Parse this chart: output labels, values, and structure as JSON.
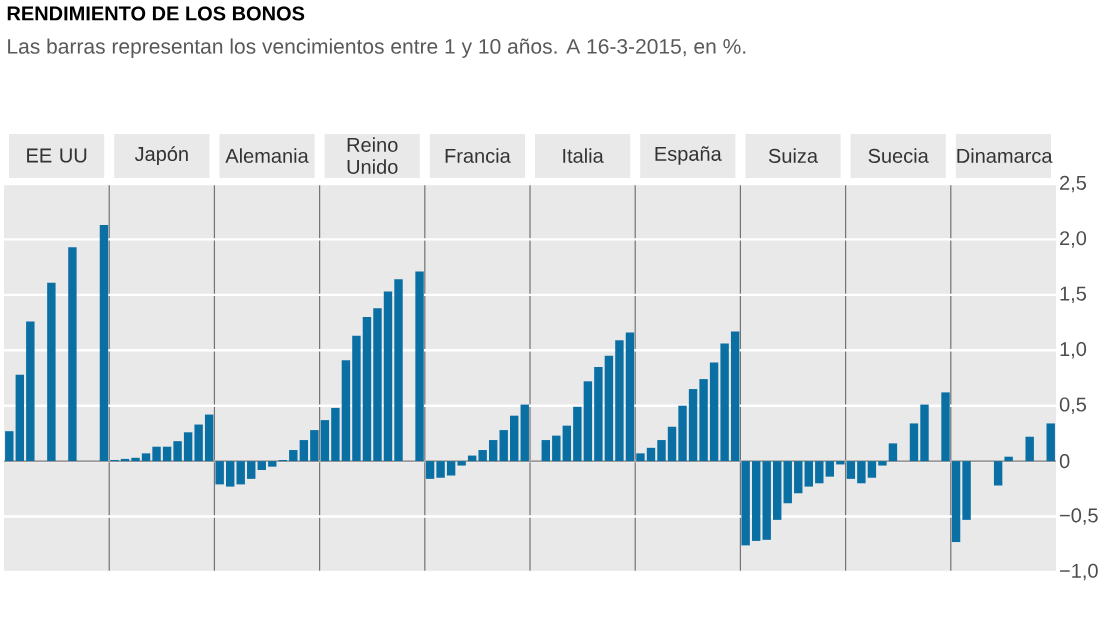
{
  "chart_data": {
    "type": "bar",
    "title": "RENDIMIENTO DE LOS BONOS",
    "subtitle": "Las barras representan los vencimientos entre 1 y 10 años. A 16-3-2015, en %.",
    "categories": [
      "EE UU",
      "Japón",
      "Alemania",
      "Reino Unido",
      "Francia",
      "Italia",
      "España",
      "Suiza",
      "Suecia",
      "Dinamarca"
    ],
    "series": [
      {
        "color": "#0a6fa3",
        "values": [
          0.27,
          0.01,
          -0.21,
          0.37,
          -0.16,
          null,
          0.07,
          -0.76,
          -0.16,
          -0.73
        ]
      },
      {
        "color": "#0a6fa3",
        "values": [
          0.78,
          0.02,
          -0.23,
          0.48,
          -0.15,
          0.19,
          0.12,
          -0.72,
          -0.2,
          -0.53
        ]
      },
      {
        "color": "#0a6fa3",
        "values": [
          1.26,
          0.03,
          -0.21,
          0.91,
          -0.13,
          0.23,
          0.19,
          -0.71,
          -0.15,
          null
        ]
      },
      {
        "color": "#0a6fa3",
        "values": [
          null,
          0.07,
          -0.16,
          1.13,
          -0.04,
          0.32,
          0.31,
          -0.53,
          -0.04,
          null
        ]
      },
      {
        "color": "#0a6fa3",
        "values": [
          1.61,
          0.13,
          -0.08,
          1.3,
          0.05,
          0.49,
          0.5,
          -0.38,
          0.16,
          -0.22
        ]
      },
      {
        "color": "#0a6fa3",
        "values": [
          null,
          0.13,
          -0.05,
          1.38,
          0.1,
          0.72,
          0.65,
          -0.29,
          null,
          0.04
        ]
      },
      {
        "color": "#0a6fa3",
        "values": [
          1.93,
          0.18,
          0.01,
          1.53,
          0.19,
          0.85,
          0.74,
          -0.23,
          0.34,
          null
        ]
      },
      {
        "color": "#0a6fa3",
        "values": [
          null,
          0.26,
          0.1,
          1.64,
          0.28,
          0.95,
          0.89,
          -0.2,
          0.51,
          0.22
        ]
      },
      {
        "color": "#0a6fa3",
        "values": [
          null,
          0.33,
          0.19,
          null,
          0.41,
          1.09,
          1.06,
          -0.14,
          null,
          null
        ]
      },
      {
        "color": "#0a6fa3",
        "values": [
          2.13,
          0.42,
          0.28,
          1.71,
          0.51,
          1.16,
          1.17,
          -0.03,
          0.62,
          0.34
        ]
      }
    ],
    "ylim": [
      -1,
      2.5
    ],
    "yticks": [
      {
        "value": -1,
        "label": "−1,0"
      },
      {
        "value": -0.5,
        "label": "−0,5"
      },
      0,
      {
        "value": 0.5,
        "label": "0,5"
      },
      {
        "value": 1,
        "label": "1,0"
      },
      {
        "value": 1.5,
        "label": "1,5"
      },
      {
        "value": 2,
        "label": "2,0"
      },
      {
        "value": 2.5,
        "label": "2,5"
      }
    ],
    "grid": "y"
  }
}
